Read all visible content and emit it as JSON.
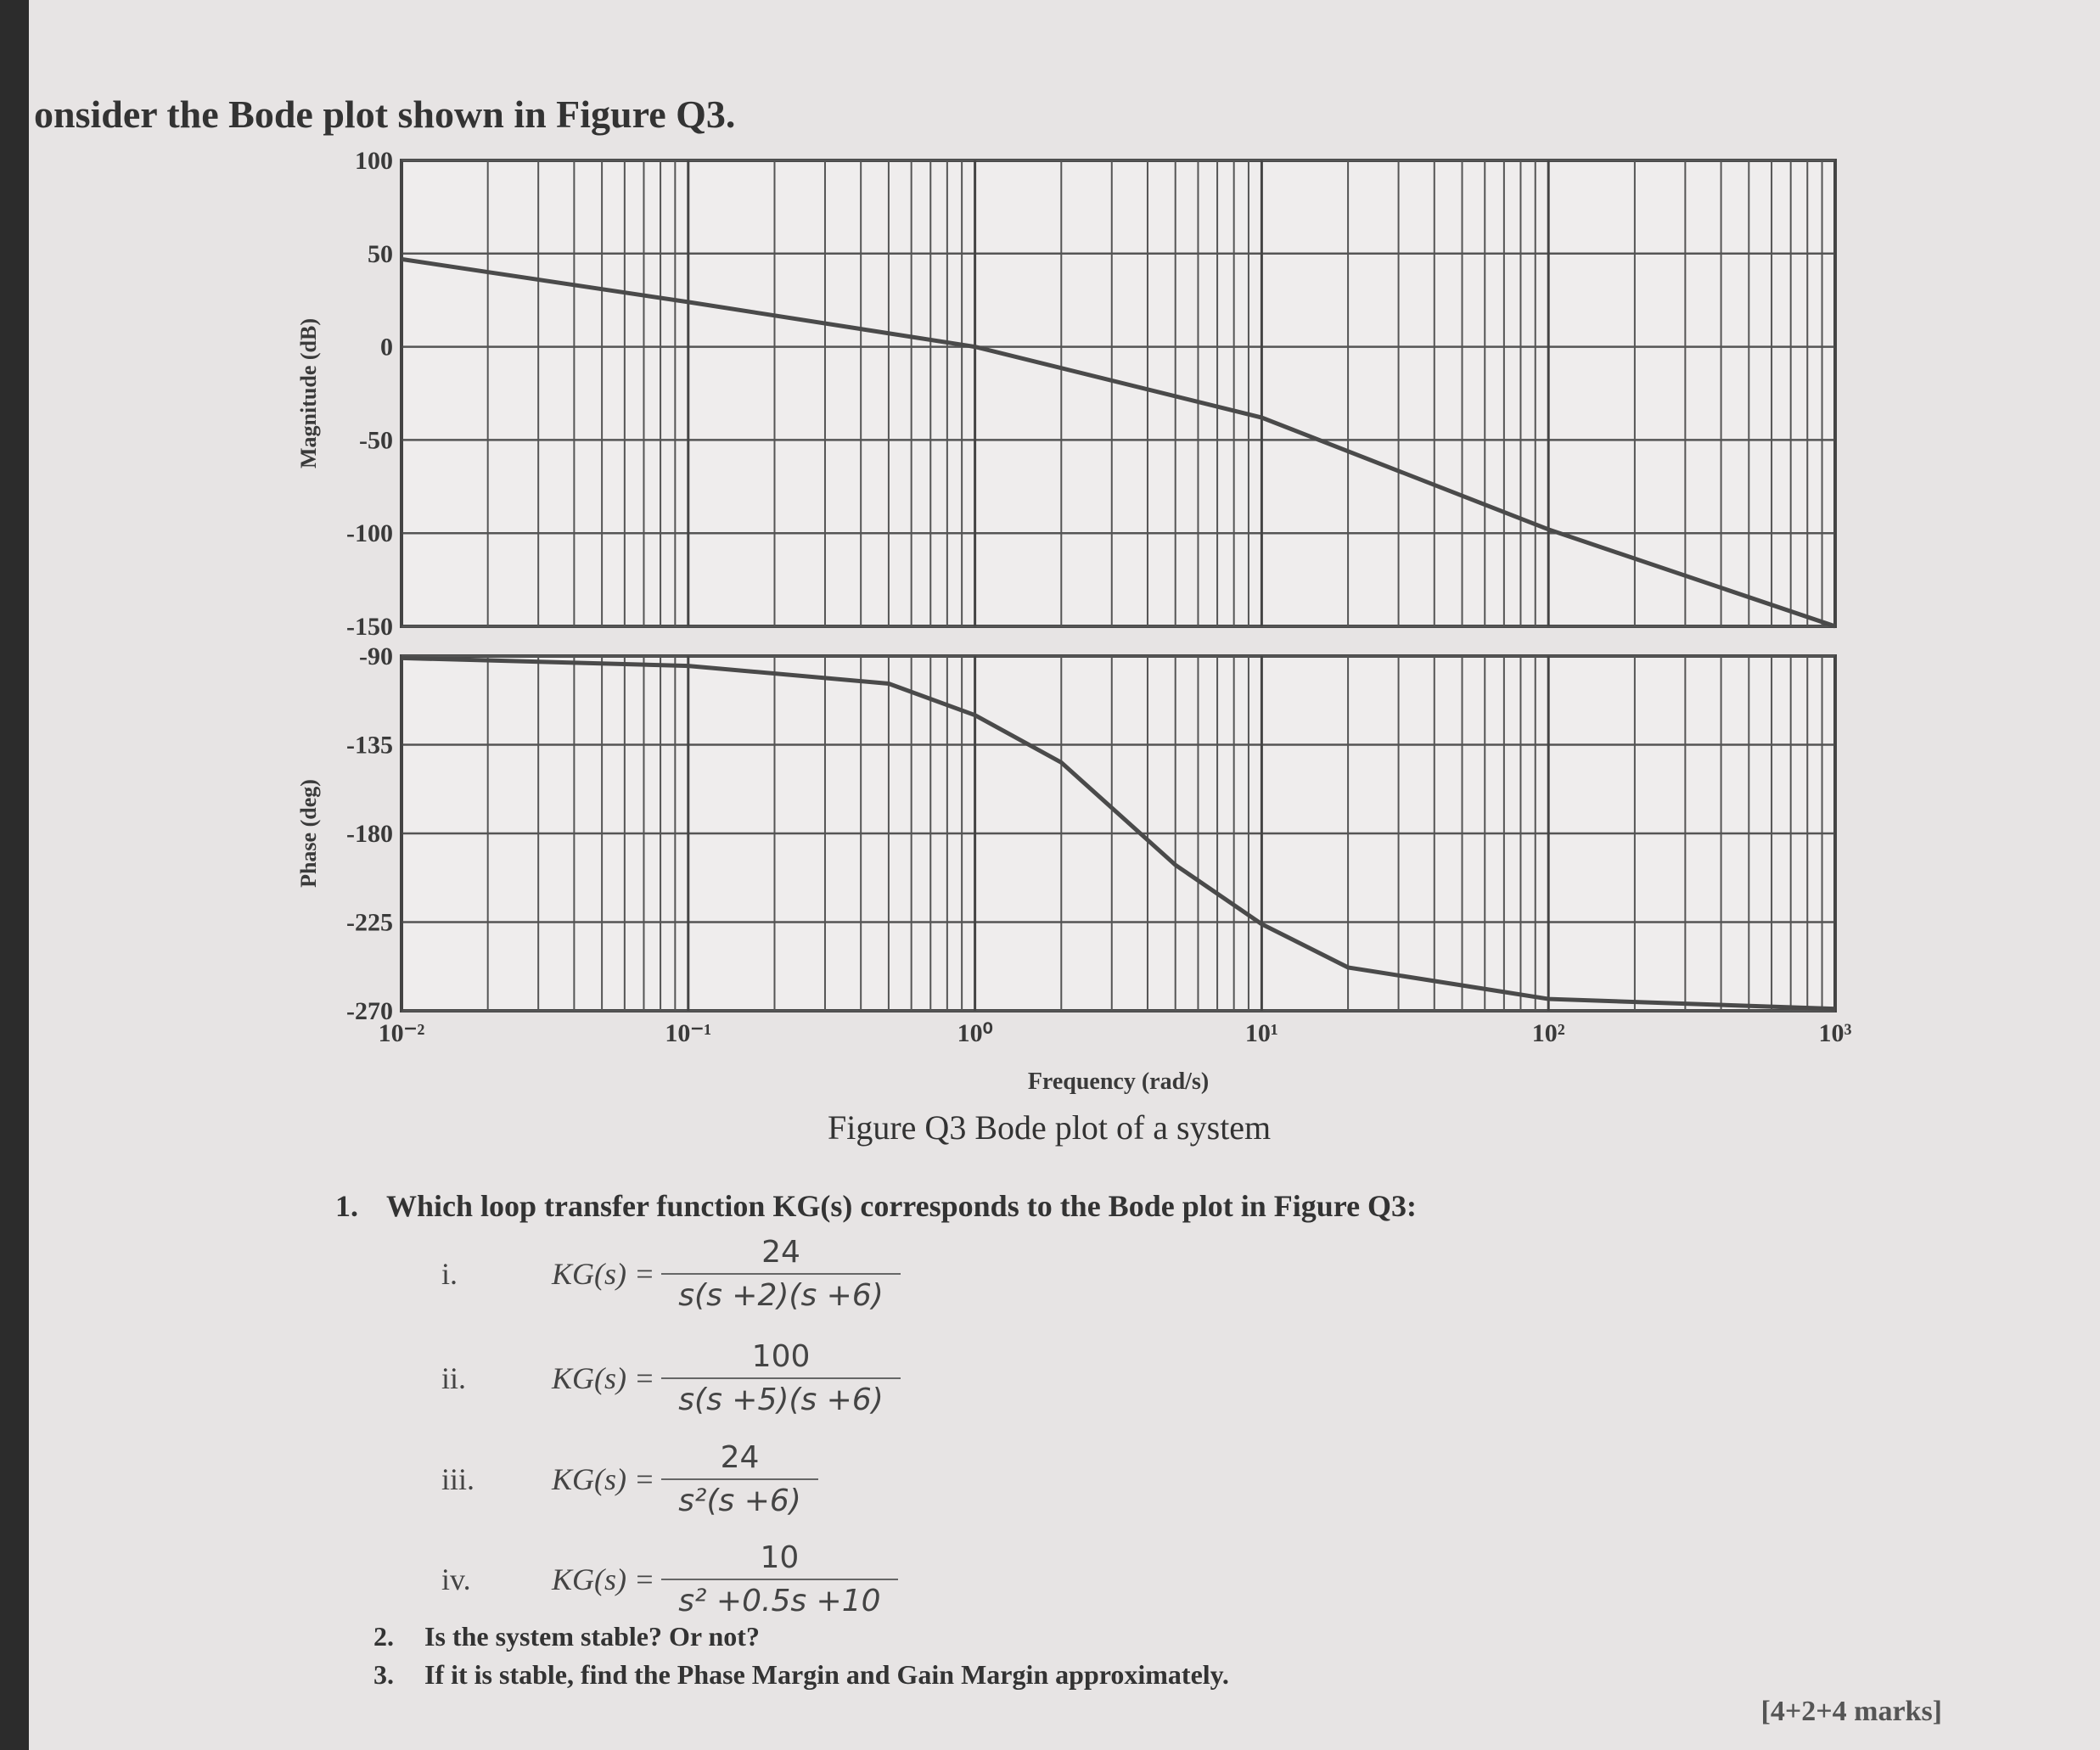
{
  "intro": "onsider the Bode plot shown in Figure Q3.",
  "chart_data": [
    {
      "type": "line",
      "y_label": "Magnitude (dB)",
      "xscale": "log",
      "grid": true,
      "x": [
        0.01,
        0.1,
        1,
        10,
        100,
        1000
      ],
      "series": [
        {
          "color": "#4a4a4a",
          "values": [
            47,
            24,
            0,
            -38,
            -98,
            -150
          ]
        }
      ],
      "xlim": [
        0.01,
        1000
      ],
      "ylim": [
        -150,
        100
      ],
      "yticks": [
        100,
        50,
        0,
        -50,
        -100,
        -150
      ]
    },
    {
      "type": "line",
      "y_label": "Phase (deg)",
      "x_label": "Frequency (rad/s)",
      "xscale": "log",
      "grid": true,
      "x": [
        0.01,
        0.1,
        0.5,
        1,
        2,
        5,
        10,
        20,
        100,
        1000
      ],
      "series": [
        {
          "color": "#4a4a4a",
          "values": [
            -91,
            -95,
            -104,
            -120,
            -144,
            -196,
            -226,
            -248,
            -264,
            -269
          ]
        }
      ],
      "xlim": [
        0.01,
        1000
      ],
      "xticks": [
        {
          "value": 0.01,
          "label": "10⁻²"
        },
        {
          "value": 0.1,
          "label": "10⁻¹"
        },
        {
          "value": 1,
          "label": "10⁰"
        },
        {
          "value": 10,
          "label": "10¹"
        },
        {
          "value": 100,
          "label": "10²"
        },
        {
          "value": 1000,
          "label": "10³"
        }
      ],
      "ylim": [
        -270,
        -90
      ],
      "yticks": [
        -90,
        -135,
        -180,
        -225,
        -270
      ]
    }
  ],
  "figure_caption": "Figure Q3 Bode plot of a system",
  "questions": [
    {
      "number": "1.",
      "text": "Which loop transfer function KG(s) corresponds to the Bode plot in Figure Q3:",
      "options": [
        {
          "label": "i.",
          "lhs": "KG(s) =",
          "numerator": "24",
          "denominator": "s(s +2)(s +6)"
        },
        {
          "label": "ii.",
          "lhs": "KG(s) =",
          "numerator": "100",
          "denominator": "s(s +5)(s +6)"
        },
        {
          "label": "iii.",
          "lhs": "KG(s) =",
          "numerator": "24",
          "denominator": "s²(s +6)"
        },
        {
          "label": "iv.",
          "lhs": "KG(s) =",
          "numerator": "10",
          "denominator": "s² +0.5s +10"
        }
      ]
    },
    {
      "number": "2.",
      "text": "Is the system stable? Or not?"
    },
    {
      "number": "3.",
      "text": "If it is stable, find the Phase Margin and Gain Margin approximately."
    }
  ],
  "marks": "[4+2+4 marks]"
}
